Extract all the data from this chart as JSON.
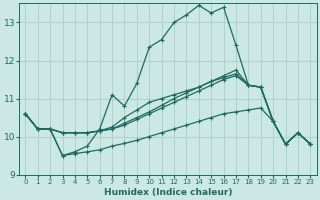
{
  "background_color": "#cce8e6",
  "grid_color": "#aaccca",
  "line_color": "#1e6b5e",
  "xlabel": "Humidex (Indice chaleur)",
  "xlim": [
    -0.5,
    23.5
  ],
  "ylim": [
    9.0,
    13.5
  ],
  "yticks": [
    9,
    10,
    11,
    12,
    13
  ],
  "xticks": [
    0,
    1,
    2,
    3,
    4,
    5,
    6,
    7,
    8,
    9,
    10,
    11,
    12,
    13,
    14,
    15,
    16,
    17,
    18,
    19,
    20,
    21,
    22,
    23
  ],
  "lines": [
    {
      "x": [
        0,
        1,
        2,
        3,
        4,
        5,
        6,
        7,
        8,
        9,
        10,
        11,
        12,
        13,
        14,
        15,
        16,
        17,
        18,
        19,
        20,
        21,
        22,
        23
      ],
      "y": [
        10.6,
        10.2,
        10.2,
        9.5,
        9.6,
        9.75,
        10.2,
        11.1,
        10.8,
        11.4,
        12.35,
        12.55,
        13.0,
        13.2,
        13.45,
        13.25,
        13.4,
        12.4,
        11.35,
        11.3,
        10.4,
        9.8,
        10.1,
        9.8
      ]
    },
    {
      "x": [
        0,
        1,
        2,
        3,
        4,
        5,
        6,
        7,
        8,
        9,
        10,
        11,
        12,
        13,
        14,
        15,
        16,
        17,
        18,
        19,
        20,
        21,
        22,
        23
      ],
      "y": [
        10.6,
        10.2,
        10.2,
        10.1,
        10.1,
        10.1,
        10.15,
        10.2,
        10.3,
        10.45,
        10.6,
        10.75,
        10.9,
        11.05,
        11.2,
        11.35,
        11.5,
        11.6,
        11.35,
        11.3,
        10.4,
        9.8,
        10.1,
        9.8
      ]
    },
    {
      "x": [
        0,
        1,
        2,
        3,
        4,
        5,
        6,
        7,
        8,
        9,
        10,
        11,
        12,
        13,
        14,
        15,
        16,
        17,
        18,
        19,
        20,
        21,
        22,
        23
      ],
      "y": [
        10.6,
        10.2,
        10.2,
        10.1,
        10.1,
        10.1,
        10.15,
        10.2,
        10.35,
        10.5,
        10.65,
        10.82,
        11.0,
        11.15,
        11.3,
        11.45,
        11.6,
        11.75,
        11.35,
        11.3,
        10.4,
        9.8,
        10.1,
        9.8
      ]
    },
    {
      "x": [
        0,
        1,
        2,
        3,
        4,
        5,
        6,
        7,
        8,
        9,
        10,
        11,
        12,
        13,
        14,
        15,
        16,
        17,
        18,
        19,
        20,
        21,
        22,
        23
      ],
      "y": [
        10.6,
        10.2,
        10.2,
        9.5,
        9.55,
        9.6,
        9.65,
        9.75,
        9.82,
        9.9,
        10.0,
        10.1,
        10.2,
        10.3,
        10.4,
        10.5,
        10.6,
        10.65,
        10.7,
        10.75,
        10.4,
        9.8,
        10.1,
        9.8
      ]
    },
    {
      "x": [
        0,
        1,
        2,
        3,
        4,
        5,
        6,
        7,
        8,
        9,
        10,
        11,
        12,
        13,
        14,
        15,
        16,
        17,
        18,
        19,
        20,
        21,
        22,
        23
      ],
      "y": [
        10.6,
        10.2,
        10.2,
        10.1,
        10.1,
        10.1,
        10.15,
        10.25,
        10.5,
        10.7,
        10.9,
        11.0,
        11.1,
        11.2,
        11.3,
        11.45,
        11.55,
        11.65,
        11.35,
        11.3,
        10.4,
        9.8,
        10.1,
        9.8
      ]
    }
  ],
  "marker": "+",
  "marker_size": 3,
  "line_width": 0.9
}
